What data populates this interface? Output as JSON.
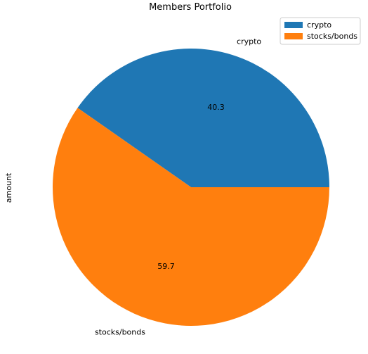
{
  "chart_data": {
    "type": "pie",
    "title": "Members Portfolio",
    "ylabel": "amount",
    "categories": [
      "crypto",
      "stocks/bonds"
    ],
    "values": [
      40.3,
      59.7
    ],
    "percent_labels": [
      "40.3",
      "59.7"
    ],
    "colors": [
      "#1f77b4",
      "#ff7f0e"
    ],
    "start_angle_deg": 0,
    "direction": "counterclockwise",
    "legend_position": "top-right"
  }
}
